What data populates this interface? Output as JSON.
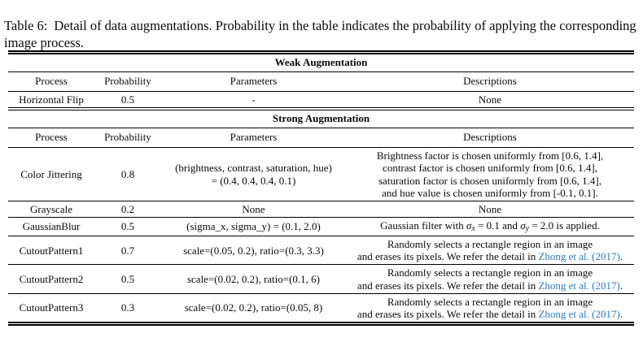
{
  "caption": {
    "label": "Table 6:",
    "text": "Detail of data augmentations. Probability in the table indicates the probability of applying the corresponding image process."
  },
  "colors": {
    "text": "#0a0a0a",
    "rule": "#000000",
    "citation": "#2b7bc4"
  },
  "table": {
    "columns": [
      "Process",
      "Probability",
      "Parameters",
      "Descriptions"
    ],
    "sections": [
      {
        "title": "Weak Augmentation",
        "rows": [
          {
            "process": "Horizontal Flip",
            "probability": "0.5",
            "parameters": [
              "-"
            ],
            "descriptions": [
              "None"
            ]
          }
        ]
      },
      {
        "title": "Strong Augmentation",
        "rows": [
          {
            "process": "Color Jittering",
            "probability": "0.8",
            "parameters": [
              "(brightness, contrast, saturation, hue)",
              "= (0.4, 0.4, 0.4, 0.1)"
            ],
            "descriptions": [
              "Brightness factor is chosen uniformly from [0.6, 1.4],",
              "contrast factor is chosen uniformly from [0.6, 1.4],",
              "saturation factor is chosen uniformly from [0.6, 1.4],",
              "and hue value is chosen uniformly from [-0.1, 0.1]."
            ]
          },
          {
            "process": "Grayscale",
            "probability": "0.2",
            "parameters": [
              "None"
            ],
            "descriptions": [
              "None"
            ]
          },
          {
            "process": "GaussianBlur",
            "probability": "0.5",
            "parameters": [
              "(sigma_x, sigma_y) = (0.1, 2.0)"
            ],
            "descriptions": [
              [
                {
                  "text": "Gaussian filter with ",
                  "kind": "text"
                },
                {
                  "text": "σ",
                  "kind": "mathvar"
                },
                {
                  "text": "x",
                  "kind": "mathsub"
                },
                {
                  "text": " = 0.1 and ",
                  "kind": "text"
                },
                {
                  "text": "σ",
                  "kind": "mathvar"
                },
                {
                  "text": "y",
                  "kind": "mathsub"
                },
                {
                  "text": " = 2.0 is applied.",
                  "kind": "text"
                }
              ]
            ]
          },
          {
            "process": "CutoutPattern1",
            "probability": "0.7",
            "parameters": [
              "scale=(0.05, 0.2), ratio=(0.3, 3.3)"
            ],
            "descriptions": [
              "Randomly selects a rectangle region in an image",
              [
                {
                  "text": "and erases its pixels. We refer the detail in ",
                  "kind": "text"
                },
                {
                  "text": "Zhong et al. (2017)",
                  "kind": "link"
                },
                {
                  "text": ".",
                  "kind": "text"
                }
              ]
            ]
          },
          {
            "process": "CutoutPattern2",
            "probability": "0.5",
            "parameters": [
              "scale=(0.02, 0.2), ratio=(0.1, 6)"
            ],
            "descriptions": [
              "Randomly selects a rectangle region in an image",
              [
                {
                  "text": "and erases its pixels. We refer the detail in ",
                  "kind": "text"
                },
                {
                  "text": "Zhong et al. (2017)",
                  "kind": "link"
                },
                {
                  "text": ".",
                  "kind": "text"
                }
              ]
            ]
          },
          {
            "process": "CutoutPattern3",
            "probability": "0.3",
            "parameters": [
              "scale=(0.02, 0.2), ratio=(0.05, 8)"
            ],
            "descriptions": [
              "Randomly selects a rectangle region in an image",
              [
                {
                  "text": "and erases its pixels. We refer the detail in ",
                  "kind": "text"
                },
                {
                  "text": "Zhong et al. (2017)",
                  "kind": "link"
                },
                {
                  "text": ".",
                  "kind": "text"
                }
              ]
            ]
          }
        ]
      }
    ]
  }
}
